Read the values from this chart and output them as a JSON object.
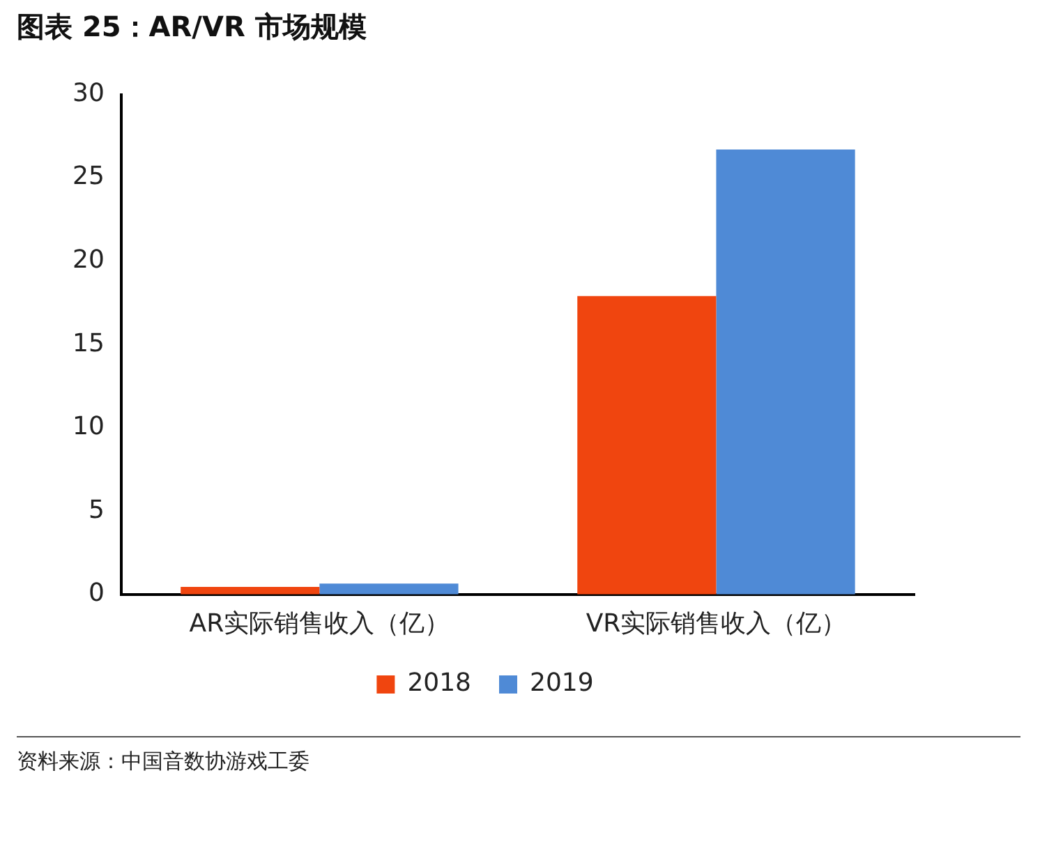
{
  "chart_data": {
    "type": "bar",
    "title": "图表 25：AR/VR 市场规模",
    "categories": [
      "AR实际销售收入（亿）",
      "VR实际销售收入（亿）"
    ],
    "series": [
      {
        "name": "2018",
        "color": "#f0450f",
        "values": [
          0.45,
          17.9
        ]
      },
      {
        "name": "2019",
        "color": "#4f8ad6",
        "values": [
          0.65,
          26.7
        ]
      }
    ],
    "ylim": [
      0,
      30
    ],
    "yticks": [
      0,
      5,
      10,
      15,
      20,
      25,
      30
    ],
    "grid": false,
    "legend": "bottom",
    "annotations": [
      "资料来源：中国音数协游戏工委"
    ]
  }
}
